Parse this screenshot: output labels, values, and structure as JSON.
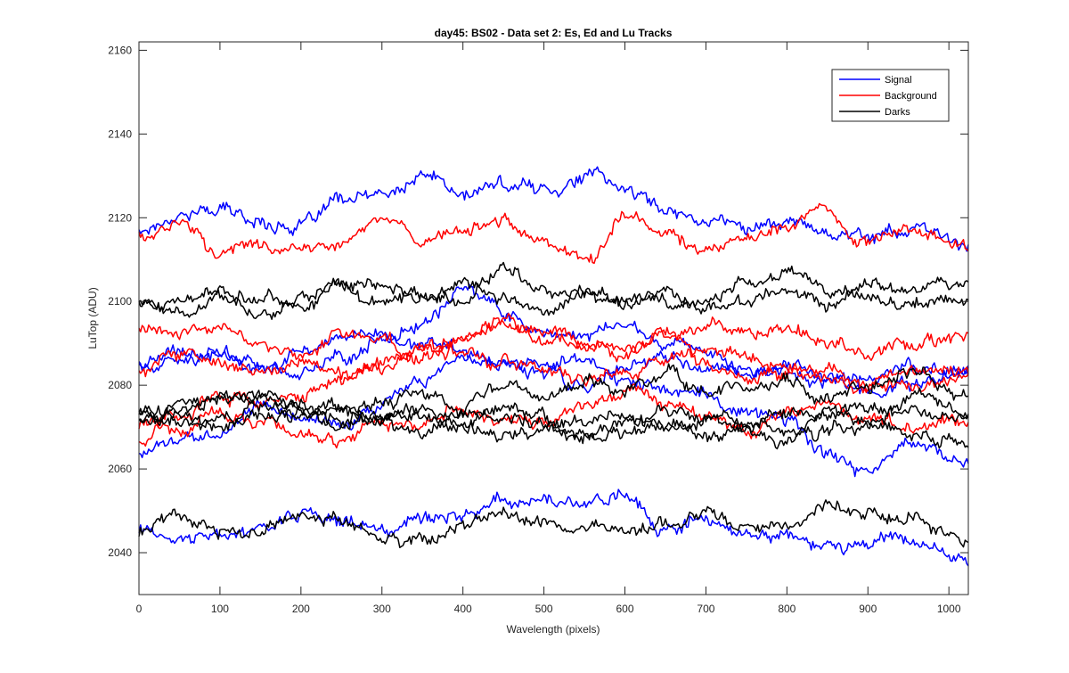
{
  "chart_data": {
    "type": "line",
    "title": "day45: BS02 - Data set 2: Es, Ed and Lu Tracks",
    "xlabel": "Wavelength (pixels)",
    "ylabel": "LuTop (ADU)",
    "xlim": [
      0,
      1024
    ],
    "ylim": [
      2030,
      2162
    ],
    "xticks": [
      0,
      100,
      200,
      300,
      400,
      500,
      600,
      700,
      800,
      900,
      1000
    ],
    "yticks": [
      2040,
      2060,
      2080,
      2100,
      2120,
      2140,
      2160
    ],
    "grid": false,
    "legend_position": "top-right",
    "colors": {
      "Signal": "#0000ff",
      "Background": "#ff0000",
      "Darks": "#000000"
    },
    "legend": [
      "Signal",
      "Background",
      "Darks"
    ],
    "series": [
      {
        "name": "Signal",
        "x": [
          0,
          50,
          100,
          150,
          200,
          250,
          300,
          360,
          400,
          450,
          500,
          560,
          600,
          650,
          700,
          750,
          800,
          850,
          900,
          950,
          1024
        ],
        "y": [
          2117,
          2121,
          2122,
          2119,
          2118,
          2124,
          2125,
          2130,
          2125,
          2128,
          2127,
          2130,
          2127,
          2122,
          2120,
          2118,
          2119,
          2117,
          2116,
          2117,
          2114
        ]
      },
      {
        "name": "Signal",
        "x": [
          0,
          50,
          100,
          150,
          200,
          250,
          300,
          350,
          400,
          450,
          500,
          550,
          600,
          650,
          700,
          750,
          800,
          850,
          900,
          950,
          1024
        ],
        "y": [
          2086,
          2087,
          2088,
          2083,
          2088,
          2090,
          2092,
          2095,
          2103,
          2098,
          2093,
          2092,
          2094,
          2090,
          2088,
          2084,
          2083,
          2081,
          2078,
          2080,
          2082
        ]
      },
      {
        "name": "Signal",
        "x": [
          0,
          50,
          100,
          150,
          200,
          250,
          300,
          350,
          400,
          450,
          500,
          550,
          600,
          650,
          700,
          750,
          800,
          850,
          900,
          950,
          1024
        ],
        "y": [
          2084,
          2086,
          2088,
          2085,
          2083,
          2086,
          2091,
          2090,
          2088,
          2086,
          2085,
          2080,
          2084,
          2087,
          2085,
          2083,
          2086,
          2083,
          2081,
          2084,
          2085
        ]
      },
      {
        "name": "Signal",
        "x": [
          0,
          50,
          100,
          150,
          200,
          250,
          300,
          350,
          400,
          450,
          500,
          550,
          600,
          650,
          700,
          750,
          800,
          850,
          900,
          950,
          1024
        ],
        "y": [
          2063,
          2067,
          2068,
          2074,
          2072,
          2070,
          2075,
          2081,
          2087,
          2085,
          2083,
          2086,
          2081,
          2079,
          2078,
          2074,
          2072,
          2064,
          2059,
          2066,
          2062
        ]
      },
      {
        "name": "Signal",
        "x": [
          0,
          50,
          100,
          150,
          200,
          250,
          300,
          350,
          400,
          450,
          500,
          550,
          600,
          650,
          700,
          750,
          800,
          850,
          900,
          950,
          1024
        ],
        "y": [
          2045,
          2043,
          2044,
          2046,
          2049,
          2047,
          2045,
          2048,
          2050,
          2053,
          2052,
          2052,
          2054,
          2046,
          2049,
          2044,
          2043,
          2041,
          2042,
          2043,
          2039
        ]
      },
      {
        "name": "Background",
        "x": [
          0,
          50,
          100,
          150,
          200,
          250,
          300,
          350,
          400,
          450,
          500,
          560,
          600,
          650,
          700,
          750,
          800,
          840,
          900,
          950,
          1024
        ],
        "y": [
          2116,
          2119,
          2112,
          2114,
          2112,
          2113,
          2120,
          2115,
          2116,
          2119,
          2114,
          2112,
          2120,
          2116,
          2113,
          2115,
          2118,
          2121,
          2115,
          2117,
          2113
        ]
      },
      {
        "name": "Background",
        "x": [
          0,
          50,
          100,
          150,
          200,
          250,
          300,
          350,
          400,
          450,
          500,
          550,
          600,
          650,
          700,
          750,
          800,
          850,
          900,
          950,
          1024
        ],
        "y": [
          2094,
          2092,
          2094,
          2089,
          2086,
          2093,
          2090,
          2087,
          2091,
          2095,
          2093,
          2090,
          2088,
          2091,
          2095,
          2092,
          2094,
          2090,
          2087,
          2090,
          2092
        ]
      },
      {
        "name": "Background",
        "x": [
          0,
          50,
          100,
          150,
          200,
          250,
          300,
          350,
          400,
          450,
          500,
          550,
          600,
          650,
          700,
          750,
          800,
          850,
          900,
          950,
          1024
        ],
        "y": [
          2083,
          2087,
          2086,
          2082,
          2087,
          2083,
          2086,
          2089,
          2087,
          2085,
          2083,
          2081,
          2083,
          2086,
          2088,
          2087,
          2083,
          2085,
          2080,
          2084,
          2083
        ]
      },
      {
        "name": "Background",
        "x": [
          0,
          50,
          100,
          150,
          200,
          250,
          300,
          350,
          400,
          450,
          500,
          550,
          600,
          650,
          700,
          750,
          800,
          850,
          900,
          950,
          1024
        ],
        "y": [
          2067,
          2073,
          2078,
          2075,
          2077,
          2082,
          2085,
          2088,
          2092,
          2094,
          2090,
          2089,
          2087,
          2092,
          2085,
          2082,
          2084,
          2082,
          2079,
          2081,
          2083
        ]
      },
      {
        "name": "Background",
        "x": [
          0,
          50,
          100,
          150,
          200,
          250,
          300,
          350,
          400,
          450,
          500,
          550,
          600,
          650,
          700,
          750,
          800,
          850,
          900,
          950,
          1024
        ],
        "y": [
          2071,
          2068,
          2074,
          2072,
          2069,
          2067,
          2072,
          2070,
          2074,
          2071,
          2072,
          2075,
          2079,
          2077,
          2073,
          2069,
          2074,
          2076,
          2072,
          2070,
          2071
        ]
      },
      {
        "name": "Darks",
        "x": [
          0,
          50,
          100,
          150,
          200,
          250,
          300,
          350,
          400,
          450,
          500,
          550,
          600,
          650,
          700,
          750,
          800,
          850,
          900,
          950,
          1024
        ],
        "y": [
          2099,
          2101,
          2103,
          2100,
          2099,
          2103,
          2105,
          2101,
          2100,
          2108,
          2102,
          2102,
          2101,
          2100,
          2100,
          2104,
          2107,
          2103,
          2101,
          2100,
          2101
        ]
      },
      {
        "name": "Darks",
        "x": [
          0,
          50,
          100,
          150,
          200,
          250,
          300,
          350,
          400,
          450,
          500,
          550,
          600,
          650,
          700,
          750,
          800,
          850,
          900,
          950,
          1024
        ],
        "y": [
          2100,
          2098,
          2101,
          2097,
          2101,
          2103,
          2099,
          2102,
          2104,
          2100,
          2098,
          2103,
          2099,
          2103,
          2098,
          2101,
          2102,
          2100,
          2104,
          2102,
          2103
        ]
      },
      {
        "name": "Darks",
        "x": [
          0,
          50,
          100,
          150,
          200,
          250,
          300,
          350,
          400,
          450,
          500,
          550,
          600,
          650,
          700,
          750,
          800,
          850,
          900,
          950,
          1024
        ],
        "y": [
          2073,
          2075,
          2078,
          2077,
          2075,
          2074,
          2076,
          2078,
          2075,
          2079,
          2076,
          2081,
          2078,
          2083,
          2078,
          2080,
          2081,
          2077,
          2079,
          2083,
          2077
        ]
      },
      {
        "name": "Darks",
        "x": [
          0,
          50,
          100,
          150,
          200,
          250,
          300,
          350,
          400,
          450,
          500,
          550,
          600,
          650,
          700,
          750,
          800,
          850,
          900,
          950,
          1024
        ],
        "y": [
          2072,
          2073,
          2071,
          2075,
          2073,
          2070,
          2072,
          2073,
          2071,
          2072,
          2070,
          2068,
          2071,
          2073,
          2072,
          2070,
          2074,
          2072,
          2071,
          2076,
          2074
        ]
      },
      {
        "name": "Darks",
        "x": [
          0,
          50,
          100,
          150,
          200,
          250,
          300,
          350,
          400,
          450,
          500,
          550,
          600,
          650,
          700,
          750,
          800,
          850,
          900,
          950,
          1024
        ],
        "y": [
          2074,
          2071,
          2070,
          2073,
          2072,
          2074,
          2071,
          2069,
          2072,
          2074,
          2072,
          2071,
          2073,
          2070,
          2072,
          2071,
          2069,
          2072,
          2074,
          2073,
          2072
        ]
      },
      {
        "name": "Darks",
        "x": [
          0,
          50,
          100,
          150,
          200,
          250,
          300,
          350,
          400,
          450,
          500,
          550,
          600,
          650,
          700,
          750,
          800,
          850,
          900,
          950,
          1024
        ],
        "y": [
          2072,
          2074,
          2076,
          2079,
          2075,
          2071,
          2073,
          2075,
          2070,
          2068,
          2070,
          2067,
          2069,
          2071,
          2068,
          2070,
          2067,
          2069,
          2070,
          2068,
          2067
        ]
      },
      {
        "name": "Darks",
        "x": [
          0,
          50,
          100,
          150,
          200,
          250,
          300,
          350,
          400,
          450,
          500,
          550,
          600,
          650,
          700,
          750,
          800,
          850,
          900,
          950,
          1024
        ],
        "y": [
          2045,
          2048,
          2045,
          2046,
          2049,
          2048,
          2044,
          2043,
          2046,
          2049,
          2047,
          2046,
          2044,
          2046,
          2049,
          2045,
          2047,
          2052,
          2049,
          2048,
          2043
        ]
      }
    ]
  }
}
